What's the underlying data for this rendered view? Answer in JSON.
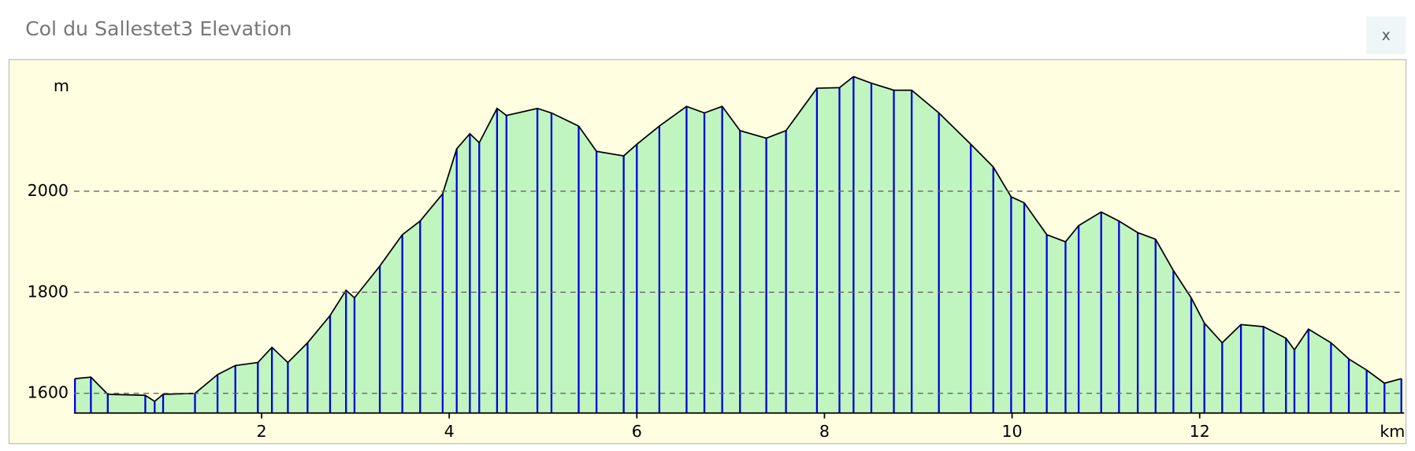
{
  "close_button": "x",
  "chart_data": {
    "type": "area",
    "title": "Col du Sallestet3 Elevation",
    "y_label": "m",
    "x_label": "km",
    "x": [
      0.01,
      0.18,
      0.36,
      0.76,
      0.86,
      0.95,
      1.29,
      1.53,
      1.72,
      1.96,
      2.11,
      2.28,
      2.49,
      2.73,
      2.9,
      2.99,
      3.26,
      3.5,
      3.69,
      3.93,
      4.08,
      4.22,
      4.32,
      4.51,
      4.61,
      4.94,
      5.09,
      5.38,
      5.57,
      5.86,
      6.0,
      6.24,
      6.53,
      6.72,
      6.91,
      7.1,
      7.38,
      7.59,
      7.92,
      8.16,
      8.31,
      8.5,
      8.74,
      8.93,
      9.22,
      9.56,
      9.8,
      9.99,
      10.13,
      10.37,
      10.57,
      10.71,
      10.95,
      11.14,
      11.34,
      11.53,
      11.72,
      11.91,
      12.05,
      12.24,
      12.44,
      12.68,
      12.92,
      13.01,
      13.16,
      13.4,
      13.59,
      13.78,
      13.97,
      14.15
    ],
    "values": [
      1629,
      1632,
      1598,
      1596,
      1584,
      1598,
      1600,
      1637,
      1655,
      1661,
      1691,
      1661,
      1700,
      1754,
      1804,
      1789,
      1852,
      1914,
      1941,
      1995,
      2084,
      2114,
      2096,
      2164,
      2150,
      2164,
      2155,
      2129,
      2079,
      2070,
      2093,
      2129,
      2168,
      2155,
      2168,
      2120,
      2105,
      2120,
      2204,
      2205,
      2227,
      2214,
      2200,
      2200,
      2155,
      2093,
      2048,
      1989,
      1977,
      1914,
      1900,
      1932,
      1959,
      1941,
      1918,
      1905,
      1843,
      1789,
      1739,
      1700,
      1736,
      1732,
      1709,
      1686,
      1727,
      1700,
      1668,
      1646,
      1620,
      1629
    ],
    "fill_color": "#c0f5c0",
    "line_color": "#0000dd",
    "outline_color": "#000000",
    "xlim": [
      0,
      14.18
    ],
    "ylim": [
      1561,
      2257
    ],
    "xticks": [
      2,
      4,
      6,
      8,
      10,
      12
    ],
    "yticks": [
      1600,
      1800,
      2000
    ],
    "grid": true
  }
}
